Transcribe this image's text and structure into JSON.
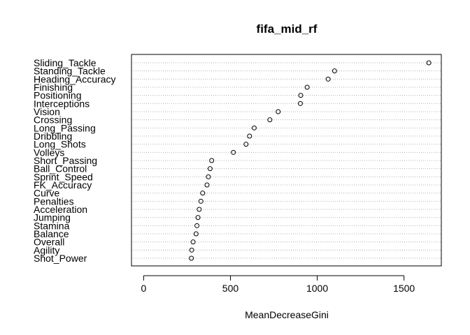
{
  "chart_data": {
    "type": "scatter",
    "title": "fifa_mid_rf",
    "xlabel": "MeanDecreaseGini",
    "ylabel": "",
    "xlim": [
      -70,
      1715
    ],
    "xticks": [
      0,
      500,
      1000,
      1500
    ],
    "xtick_labels": [
      "0",
      "500",
      "1000",
      "1500"
    ],
    "grid": "dotted horizontal lines",
    "categories": [
      "Sliding_Tackle",
      "Standing_Tackle",
      "Heading_Accuracy",
      "Finishing",
      "Positioning",
      "Interceptions",
      "Vision",
      "Crossing",
      "Long_Passing",
      "Dribbling",
      "Long_Shots",
      "Volleys",
      "Short_Passing",
      "Ball_Control",
      "Sprint_Speed",
      "FK_Accuracy",
      "Curve",
      "Penalties",
      "Acceleration",
      "Jumping",
      "Stamina",
      "Balance",
      "Overall",
      "Agility",
      "Shot_Power"
    ],
    "values": [
      1643,
      1100,
      1063,
      942,
      905,
      903,
      775,
      727,
      637,
      610,
      590,
      517,
      392,
      383,
      373,
      365,
      340,
      330,
      320,
      313,
      307,
      302,
      285,
      277,
      275
    ]
  }
}
